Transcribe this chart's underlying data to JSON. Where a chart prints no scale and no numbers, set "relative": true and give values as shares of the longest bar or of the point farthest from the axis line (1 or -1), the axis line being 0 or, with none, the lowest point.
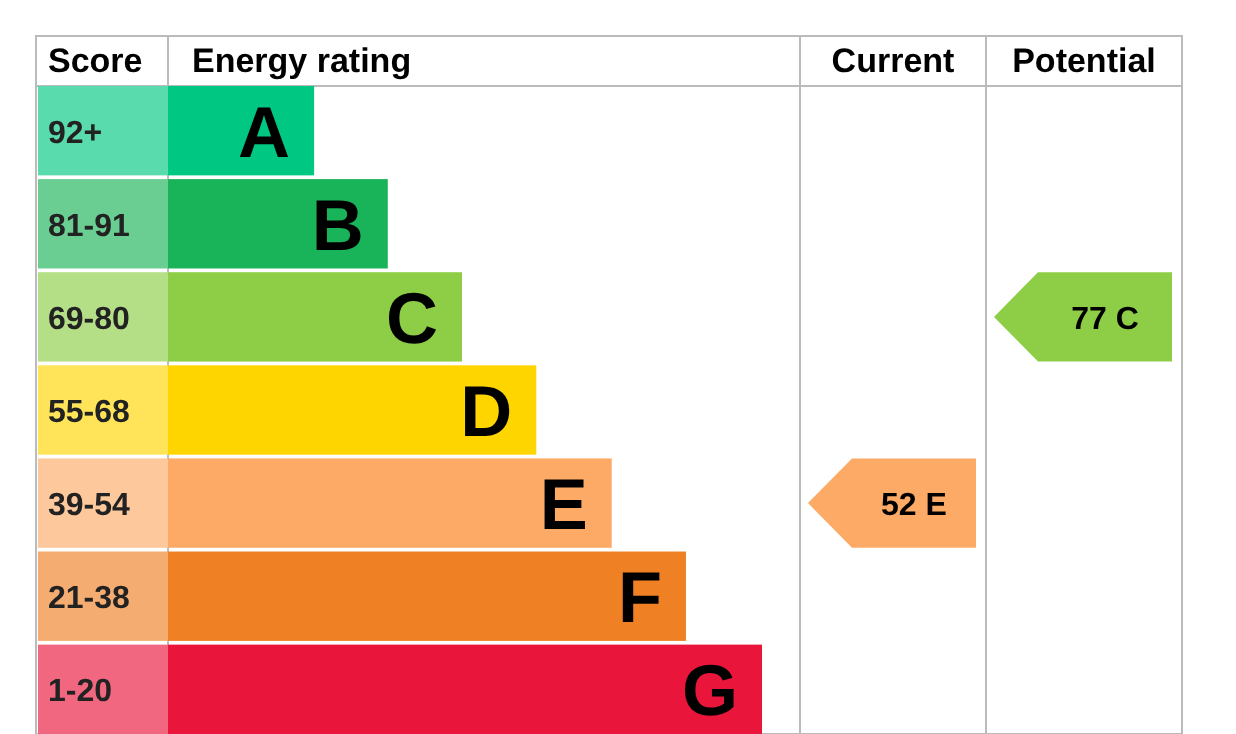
{
  "chart_data": {
    "type": "bar",
    "orientation": "horizontal",
    "relative": true,
    "categories": [
      "92+",
      "81-91",
      "69-80",
      "55-68",
      "39-54",
      "21-38",
      "1-20"
    ],
    "values": [
      0.246,
      0.37,
      0.495,
      0.62,
      0.747,
      0.872,
      1
    ],
    "colors": [
      "#00c781",
      "#19b459",
      "#8dce46",
      "#ffd500",
      "#fcaa65",
      "#ef8023",
      "#e9153b"
    ],
    "annotations": [
      "Score",
      "Energy rating",
      "Current",
      "Potential",
      {
        "text": "A",
        "y": "92+"
      },
      {
        "text": "B",
        "y": "81-91"
      },
      {
        "text": "C",
        "y": "69-80"
      },
      {
        "text": "D",
        "y": "55-68"
      },
      {
        "text": "E",
        "y": "39-54"
      },
      {
        "text": "F",
        "y": "21-38"
      },
      {
        "text": "G",
        "y": "1-20"
      },
      "52 E",
      "77 C"
    ]
  }
}
